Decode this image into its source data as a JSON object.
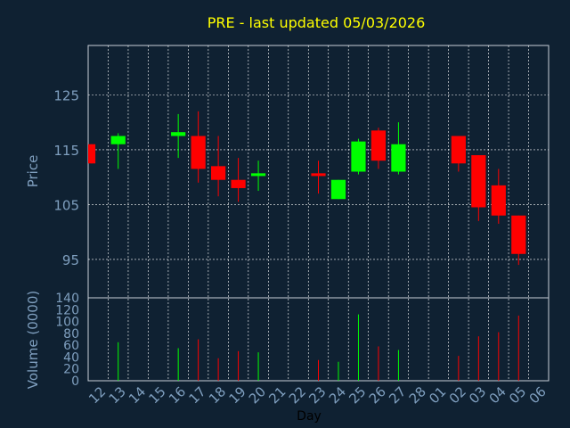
{
  "chart_data": {
    "type": "candlestick",
    "title": "PRE - last updated 05/03/2026",
    "xlabel": "Day",
    "x": [
      "12",
      "13",
      "14",
      "15",
      "16",
      "17",
      "18",
      "19",
      "20",
      "21",
      "22",
      "23",
      "24",
      "25",
      "26",
      "27",
      "28",
      "01",
      "02",
      "03",
      "04",
      "05",
      "06"
    ],
    "price_panel": {
      "ylabel": "Price",
      "ylim": [
        88,
        134
      ],
      "yticks": [
        95,
        105,
        115,
        125
      ],
      "candles": [
        {
          "x": "12",
          "open": 116,
          "close": 112.5,
          "high": 116,
          "low": 112.5
        },
        {
          "x": "13",
          "open": 116,
          "close": 117.5,
          "high": 118,
          "low": 111.5
        },
        {
          "x": "16",
          "open": 117.5,
          "close": 118.2,
          "high": 121.5,
          "low": 113.5
        },
        {
          "x": "17",
          "open": 117.5,
          "close": 111.5,
          "high": 122,
          "low": 109
        },
        {
          "x": "18",
          "open": 112,
          "close": 109.5,
          "high": 117.5,
          "low": 106.5
        },
        {
          "x": "19",
          "open": 109.5,
          "close": 108,
          "high": 113.5,
          "low": 105.5
        },
        {
          "x": "20",
          "open": 110.2,
          "close": 110.7,
          "high": 113,
          "low": 107.5
        },
        {
          "x": "23",
          "open": 110.7,
          "close": 110.2,
          "high": 113,
          "low": 107
        },
        {
          "x": "24",
          "open": 106,
          "close": 109.5,
          "high": 109.5,
          "low": 106
        },
        {
          "x": "25",
          "open": 111,
          "close": 116.5,
          "high": 117,
          "low": 110.5
        },
        {
          "x": "26",
          "open": 118.5,
          "close": 113,
          "high": 119,
          "low": 111.5
        },
        {
          "x": "27",
          "open": 111,
          "close": 116,
          "high": 120,
          "low": 110.5
        },
        {
          "x": "02",
          "open": 117.5,
          "close": 112.5,
          "high": 117.5,
          "low": 111
        },
        {
          "x": "03",
          "open": 114,
          "close": 104.5,
          "high": 114,
          "low": 102
        },
        {
          "x": "04",
          "open": 108.5,
          "close": 103,
          "high": 111.5,
          "low": 101.5
        },
        {
          "x": "05",
          "open": 103,
          "close": 96,
          "high": 103,
          "low": 94
        }
      ]
    },
    "volume_panel": {
      "ylabel": "Volume (0000)",
      "ylim": [
        0,
        140
      ],
      "yticks": [
        0,
        20,
        40,
        60,
        80,
        100,
        120,
        140
      ],
      "bars": [
        {
          "x": "13",
          "value": 65,
          "color": "#00ff00"
        },
        {
          "x": "16",
          "value": 55,
          "color": "#00ff00"
        },
        {
          "x": "17",
          "value": 70,
          "color": "#ff0000"
        },
        {
          "x": "18",
          "value": 38,
          "color": "#ff0000"
        },
        {
          "x": "19",
          "value": 50,
          "color": "#ff0000"
        },
        {
          "x": "20",
          "value": 48,
          "color": "#00ff00"
        },
        {
          "x": "23",
          "value": 35,
          "color": "#ff0000"
        },
        {
          "x": "24",
          "value": 32,
          "color": "#00ff00"
        },
        {
          "x": "25",
          "value": 112,
          "color": "#00ff00"
        },
        {
          "x": "26",
          "value": 58,
          "color": "#ff0000"
        },
        {
          "x": "27",
          "value": 52,
          "color": "#00ff00"
        },
        {
          "x": "02",
          "value": 42,
          "color": "#ff0000"
        },
        {
          "x": "03",
          "value": 75,
          "color": "#ff0000"
        },
        {
          "x": "04",
          "value": 82,
          "color": "#ff0000"
        },
        {
          "x": "05",
          "value": 110,
          "color": "#ff0000"
        }
      ]
    },
    "grid": true,
    "colors": {
      "background": "#0f2132",
      "title": "#ffff00",
      "axis_text": "#7f9fbf",
      "up": "#00ff00",
      "down": "#ff0000",
      "grid": "#ffffff"
    }
  }
}
